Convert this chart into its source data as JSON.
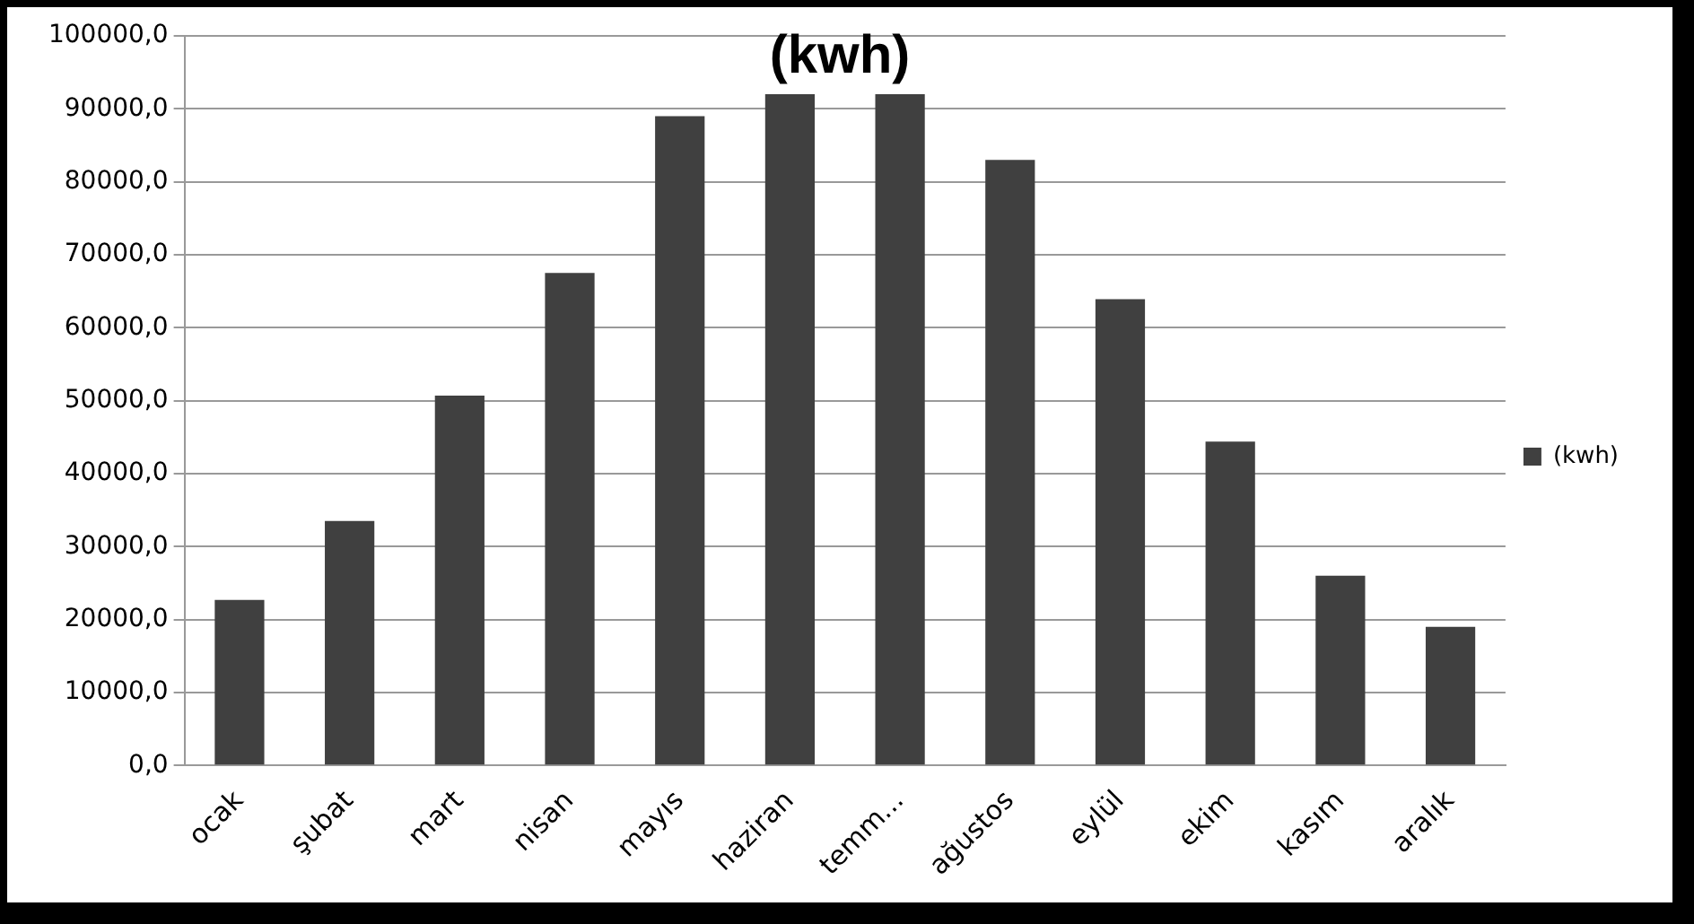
{
  "chart_data": {
    "type": "bar",
    "title": "(kwh)",
    "categories": [
      "ocak",
      "şubat",
      "mart",
      "nisan",
      "mayıs",
      "haziran",
      "temm...",
      "ağustos",
      "eylül",
      "ekim",
      "kasım",
      "aralık"
    ],
    "series": [
      {
        "name": "(kwh)",
        "color": "#404040",
        "values": [
          22700,
          33500,
          50700,
          67500,
          89000,
          92000,
          92000,
          83000,
          63900,
          44400,
          26000,
          19000
        ]
      }
    ],
    "ylim": [
      0,
      100000
    ],
    "yticks": [
      {
        "value": 0,
        "label": "0,0"
      },
      {
        "value": 10000,
        "label": "10000,0"
      },
      {
        "value": 20000,
        "label": "20000,0"
      },
      {
        "value": 30000,
        "label": "30000,0"
      },
      {
        "value": 40000,
        "label": "40000,0"
      },
      {
        "value": 50000,
        "label": "50000,0"
      },
      {
        "value": 60000,
        "label": "60000,0"
      },
      {
        "value": 70000,
        "label": "70000,0"
      },
      {
        "value": 80000,
        "label": "80000,0"
      },
      {
        "value": 90000,
        "label": "90000,0"
      },
      {
        "value": 100000,
        "label": "100000,0"
      }
    ],
    "grid": "y",
    "legend": "right"
  }
}
